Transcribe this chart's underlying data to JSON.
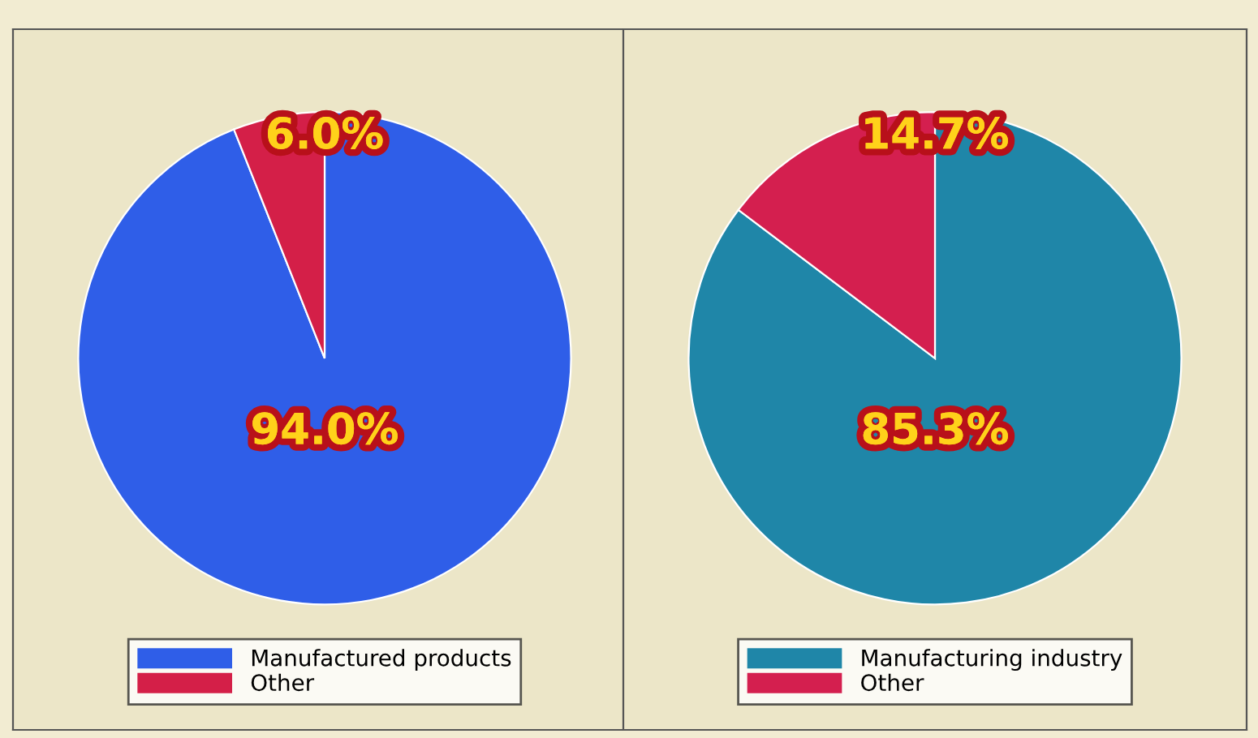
{
  "chart_data": [
    {
      "type": "pie",
      "categories": [
        "Manufactured products",
        "Other"
      ],
      "values": [
        94.0,
        6.0
      ],
      "colors": [
        "#2f5ee8",
        "#d41f48"
      ],
      "value_labels": [
        "94.0%",
        "6.0%"
      ],
      "legend": "bottom"
    },
    {
      "type": "pie",
      "categories": [
        "Manufacturing industry",
        "Other"
      ],
      "values": [
        85.3,
        14.7
      ],
      "colors": [
        "#1f86a8",
        "#d41f4f"
      ],
      "value_labels": [
        "85.3%",
        "14.7%"
      ],
      "legend": "bottom"
    }
  ]
}
